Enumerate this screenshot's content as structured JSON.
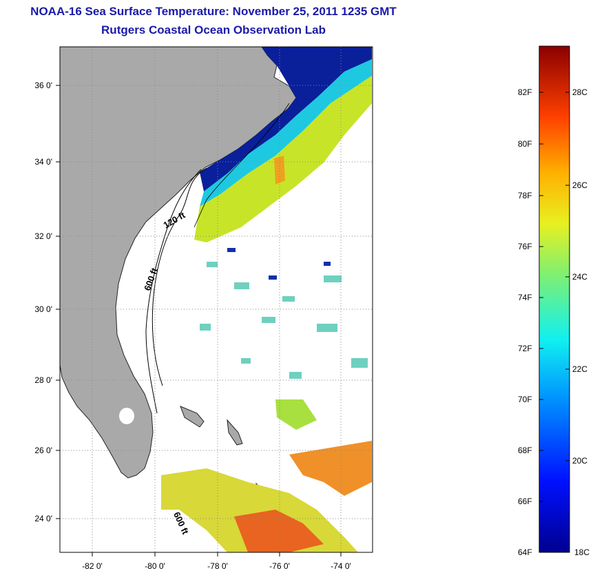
{
  "header": {
    "title": "NOAA-16 Sea Surface Temperature:  November 25, 2011 1235 GMT",
    "subtitle": "Rutgers Coastal Ocean Observation Lab"
  },
  "axes": {
    "lat_labels": [
      "36 0'",
      "34 0'",
      "32 0'",
      "30 0'",
      "28 0'",
      "26 0'",
      "24 0'"
    ],
    "lon_labels": [
      "-82 0'",
      "-80 0'",
      "-78 0'",
      "-76 0'",
      "-74 0'"
    ]
  },
  "contours": {
    "label_120": "120 ft",
    "label_600_north": "600 ft",
    "label_600_south": "600 ft"
  },
  "colorbar": {
    "fahrenheit_labels": [
      "82F",
      "80F",
      "78F",
      "76F",
      "74F",
      "72F",
      "70F",
      "68F",
      "66F",
      "64F"
    ],
    "celsius_labels": [
      "28C",
      "26C",
      "24C",
      "22C",
      "20C",
      "18C"
    ]
  },
  "colors": {
    "land": "#a9a9a9",
    "title": "#1a1aa8"
  }
}
